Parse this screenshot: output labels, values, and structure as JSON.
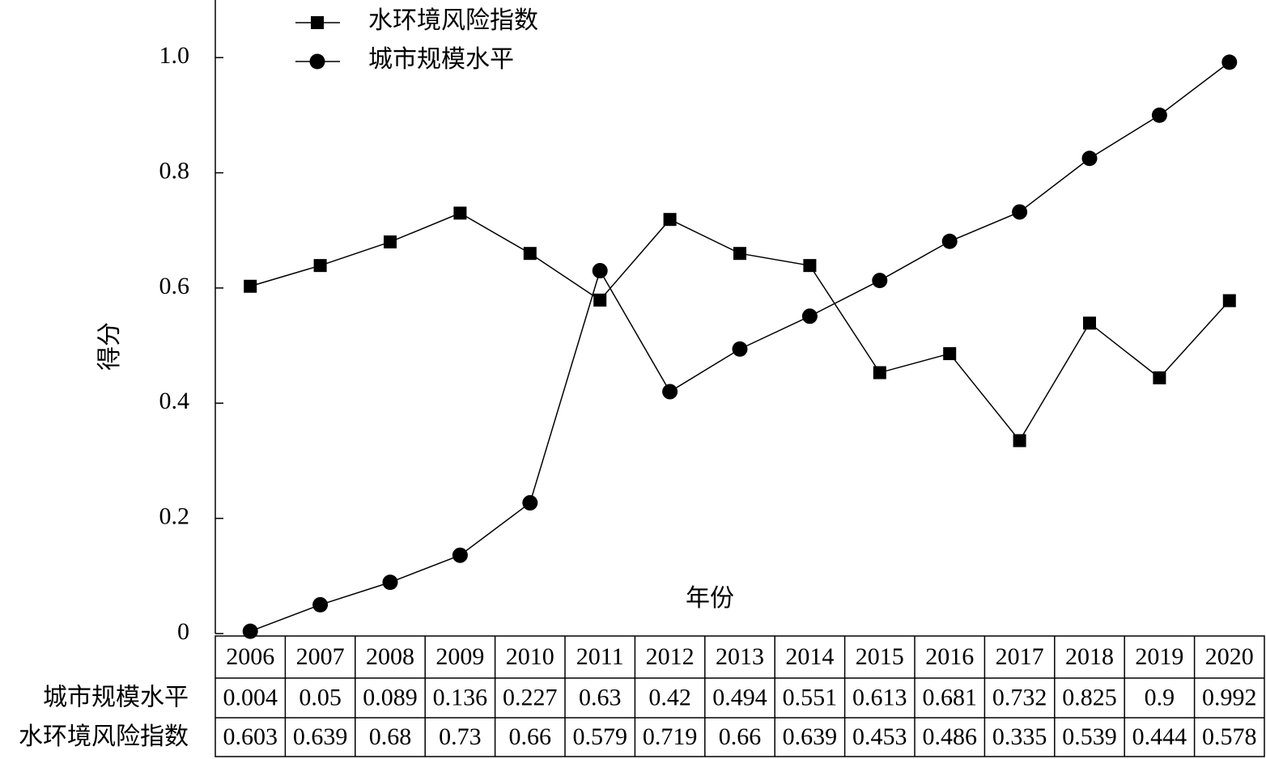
{
  "chart_data": {
    "type": "line",
    "x_label": "年份",
    "y_label": "得分",
    "categories": [
      "2006",
      "2007",
      "2008",
      "2009",
      "2010",
      "2011",
      "2012",
      "2013",
      "2014",
      "2015",
      "2016",
      "2017",
      "2018",
      "2019",
      "2020"
    ],
    "series": [
      {
        "name": "水环境风险指数",
        "color": "#000000",
        "marker": "square",
        "values": [
          0.603,
          0.639,
          0.68,
          0.73,
          0.66,
          0.579,
          0.719,
          0.66,
          0.639,
          0.453,
          0.486,
          0.335,
          0.539,
          0.444,
          0.578
        ]
      },
      {
        "name": "城市规模水平",
        "color": "#000000",
        "marker": "circle",
        "values": [
          0.004,
          0.05,
          0.089,
          0.136,
          0.227,
          0.63,
          0.42,
          0.494,
          0.551,
          0.613,
          0.681,
          0.732,
          0.825,
          0.9,
          0.992
        ]
      }
    ],
    "ylim": [
      0,
      1.1
    ],
    "yticks": [
      0,
      0.2,
      0.4,
      0.6,
      0.8,
      {
        "value": 1,
        "label": "1.0"
      }
    ],
    "legend": "upper-left"
  }
}
